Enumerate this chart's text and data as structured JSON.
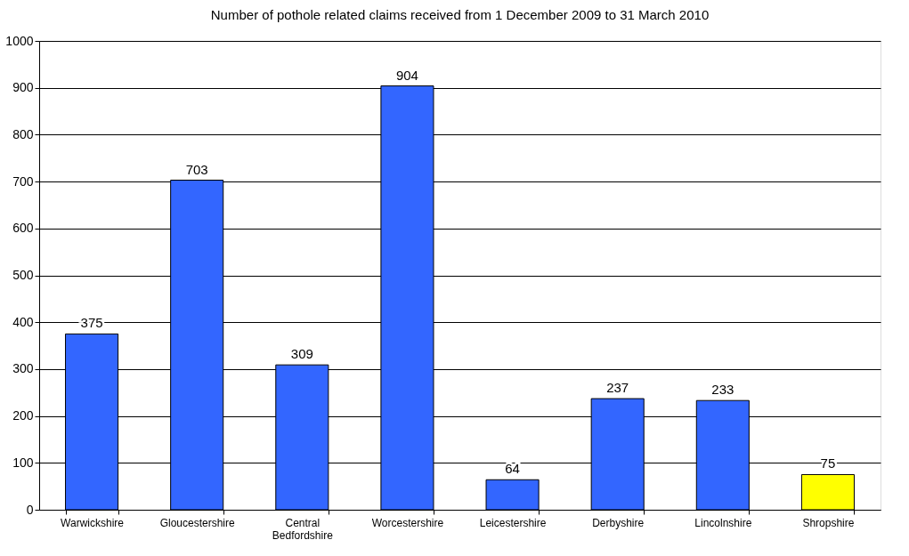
{
  "chart_data": {
    "type": "bar",
    "title": "Number of pothole related claims received from 1 December 2009 to 31 March 2010",
    "categories": [
      "Warwickshire",
      "Gloucestershire",
      "Central Bedfordshire",
      "Worcestershire",
      "Leicestershire",
      "Derbyshire",
      "Lincolnshire",
      "Shropshire"
    ],
    "values": [
      375,
      703,
      309,
      904,
      64,
      237,
      233,
      75
    ],
    "colors": [
      "#3366ff",
      "#3366ff",
      "#3366ff",
      "#3366ff",
      "#3366ff",
      "#3366ff",
      "#3366ff",
      "#ffff00"
    ],
    "ylim": [
      0,
      1000
    ],
    "yticks": [
      0,
      100,
      200,
      300,
      400,
      500,
      600,
      700,
      800,
      900,
      1000
    ],
    "grid": "y",
    "data_labels": true
  }
}
